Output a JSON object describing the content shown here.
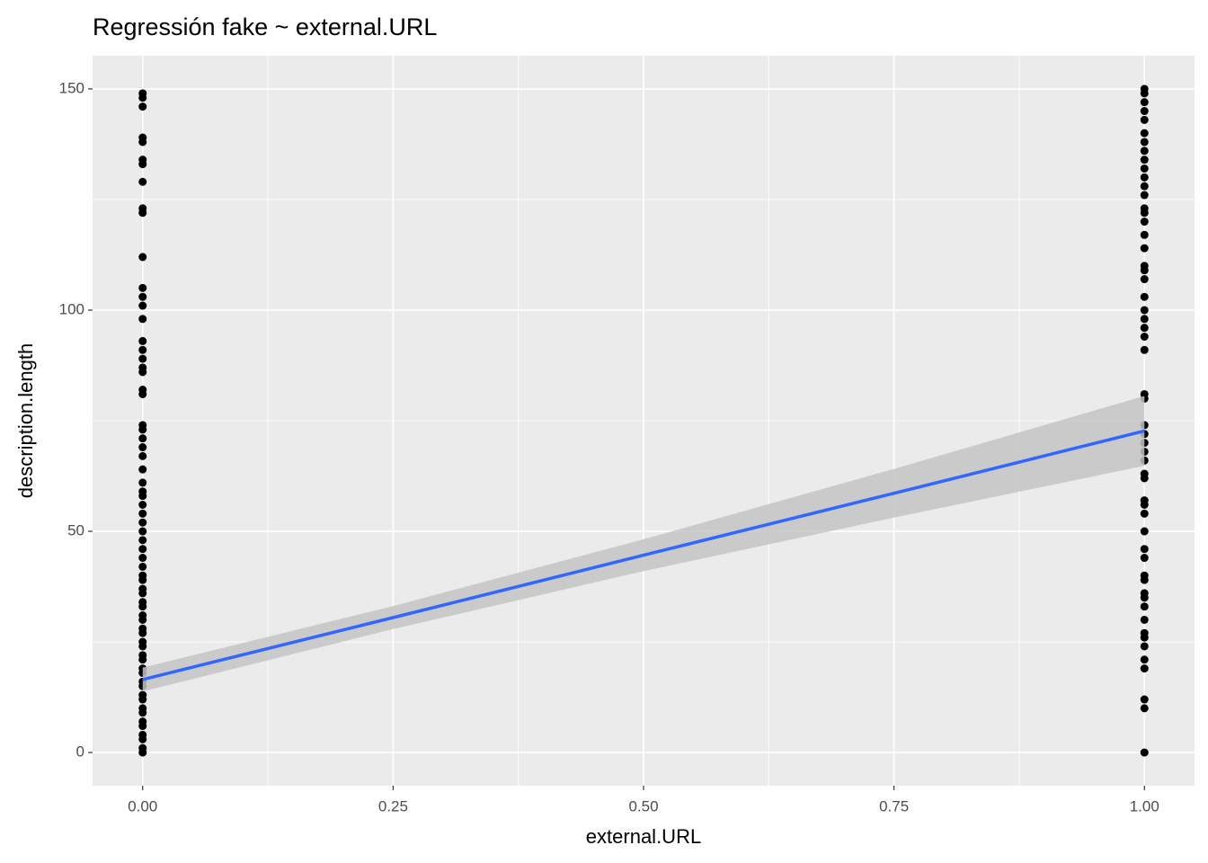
{
  "chart_data": {
    "type": "scatter",
    "title": "Regressión fake ~ external.URL",
    "x_label": "external.URL",
    "y_label": "description.length",
    "xlim": [
      -0.05,
      1.05
    ],
    "ylim": [
      -7.5,
      157.5
    ],
    "xticks": [
      {
        "value": 0,
        "label": "0.00"
      },
      {
        "value": 0.25,
        "label": "0.25"
      },
      {
        "value": 0.5,
        "label": "0.50"
      },
      {
        "value": 0.75,
        "label": "0.75"
      },
      {
        "value": 1,
        "label": "1.00"
      }
    ],
    "yticks": [
      0,
      50,
      100,
      150
    ],
    "grid": true,
    "color": "#000000",
    "x": [
      0,
      0,
      0,
      0,
      0,
      0,
      0,
      0,
      0,
      0,
      0,
      0,
      0,
      0,
      0,
      0,
      0,
      0,
      0,
      0,
      0,
      0,
      0,
      0,
      0,
      0,
      0,
      0,
      0,
      0,
      0,
      0,
      0,
      0,
      0,
      0,
      0,
      0,
      0,
      0,
      0,
      0,
      0,
      0,
      0,
      0,
      0,
      0,
      0,
      0,
      0,
      0,
      0,
      0,
      0,
      0,
      0,
      0,
      0,
      0,
      0,
      0,
      0,
      0,
      0,
      0,
      0,
      1,
      1,
      1,
      1,
      1,
      1,
      1,
      1,
      1,
      1,
      1,
      1,
      1,
      1,
      1,
      1,
      1,
      1,
      1,
      1,
      1,
      1,
      1,
      1,
      1,
      1,
      1,
      1,
      1,
      1,
      1,
      1,
      1,
      1,
      1,
      1,
      1,
      1,
      1,
      1,
      1,
      1,
      1,
      1,
      1,
      1,
      1,
      1,
      1,
      1,
      1,
      1,
      1,
      1,
      1,
      1
    ],
    "y": [
      149,
      148,
      146,
      139,
      138,
      134,
      133,
      129,
      123,
      122,
      112,
      105,
      103,
      101,
      98,
      93,
      91,
      89,
      87,
      86,
      82,
      81,
      74,
      73,
      71,
      69,
      67,
      64,
      61,
      59,
      58,
      56,
      54,
      52,
      50,
      48,
      46,
      44,
      42,
      40,
      39,
      37,
      36,
      34,
      33,
      31,
      30,
      28,
      27,
      25,
      24,
      22,
      21,
      19,
      18,
      16,
      15,
      13,
      12,
      10,
      9,
      7,
      6,
      4,
      3,
      1,
      0,
      150,
      149,
      147,
      145,
      143,
      140,
      138,
      136,
      134,
      132,
      130,
      128,
      126,
      123,
      122,
      120,
      117,
      114,
      110,
      109,
      107,
      103,
      100,
      98,
      96,
      94,
      91,
      81,
      80,
      74,
      72,
      70,
      68,
      66,
      63,
      62,
      57,
      56,
      54,
      50,
      46,
      44,
      40,
      39,
      36,
      35,
      33,
      30,
      27,
      26,
      24,
      21,
      19,
      12,
      10,
      0
    ],
    "fit": {
      "color": "#3366ff",
      "band_color": "#c4c4c4",
      "x": [
        0,
        0.25,
        0.5,
        0.75,
        1
      ],
      "y": [
        16.5,
        30.5,
        44.6,
        58.6,
        72.7
      ],
      "lower": [
        13.8,
        27.9,
        41.0,
        53.1,
        64.8
      ],
      "upper": [
        19.2,
        33.1,
        48.2,
        64.1,
        80.6
      ]
    }
  }
}
